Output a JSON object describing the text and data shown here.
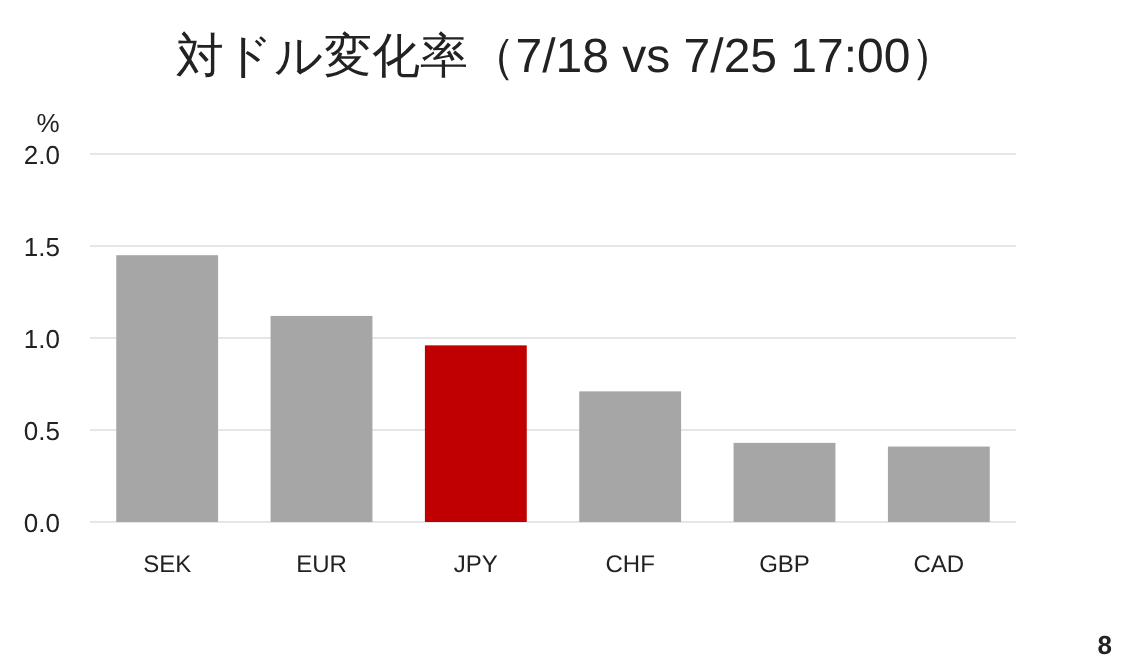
{
  "chart_data": {
    "type": "bar",
    "title": "対ドル変化率（7/18 vs 7/25 17:00）",
    "ylabel": "%",
    "categories": [
      "SEK",
      "EUR",
      "JPY",
      "CHF",
      "GBP",
      "CAD"
    ],
    "values": [
      1.45,
      1.12,
      0.96,
      0.71,
      0.43,
      0.41
    ],
    "colors": [
      "#a6a6a6",
      "#a6a6a6",
      "#c00000",
      "#a6a6a6",
      "#a6a6a6",
      "#a6a6a6"
    ],
    "ylim": [
      0,
      2
    ],
    "yticks": [
      {
        "value": 0,
        "label": "0.0"
      },
      {
        "value": 0.5,
        "label": "0.5"
      },
      {
        "value": 1,
        "label": "1.0"
      },
      {
        "value": 1.5,
        "label": "1.5"
      },
      {
        "value": 2,
        "label": "2.0"
      }
    ],
    "grid": "y",
    "annotations": [
      "8"
    ]
  }
}
